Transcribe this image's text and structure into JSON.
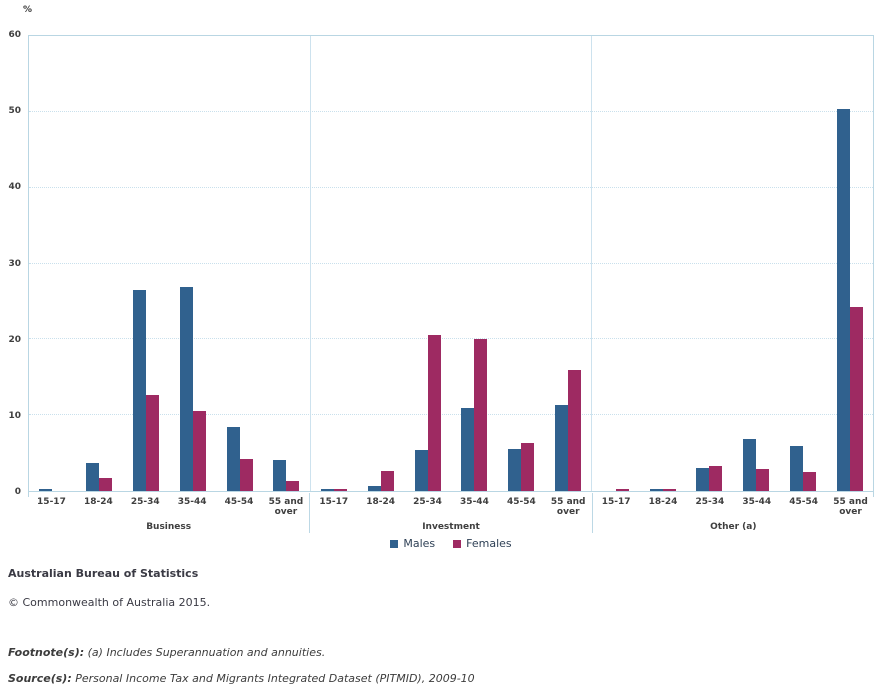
{
  "chart_data": {
    "type": "bar",
    "title": "",
    "ylabel": "%",
    "ylim": [
      0,
      60
    ],
    "yticks": [
      0,
      10,
      20,
      30,
      40,
      50,
      60
    ],
    "grid": "horizontal-dotted",
    "legend_position": "bottom-center",
    "categories": [
      "15-17",
      "18-24",
      "25-34",
      "35-44",
      "45-54",
      "55 and over"
    ],
    "groups": [
      {
        "label": "Business",
        "series": [
          {
            "name": "Males",
            "values": [
              0.2,
              3.7,
              26.5,
              26.9,
              8.4,
              4.1
            ]
          },
          {
            "name": "Females",
            "values": [
              0,
              1.7,
              12.7,
              10.6,
              4.2,
              1.3
            ]
          }
        ]
      },
      {
        "label": "Investment",
        "series": [
          {
            "name": "Males",
            "values": [
              0.2,
              0.6,
              5.4,
              11.0,
              5.6,
              11.4
            ]
          },
          {
            "name": "Females",
            "values": [
              0.2,
              2.7,
              20.6,
              20.0,
              6.3,
              15.9
            ]
          }
        ]
      },
      {
        "label": "Other (a)",
        "series": [
          {
            "name": "Males",
            "values": [
              0,
              0.3,
              3.1,
              6.8,
              5.9,
              50.4
            ]
          },
          {
            "name": "Females",
            "values": [
              0.2,
              0.2,
              3.3,
              2.9,
              2.5,
              24.3
            ]
          }
        ]
      }
    ],
    "legend": [
      {
        "label": "Males",
        "color": "#30618E"
      },
      {
        "label": "Females",
        "color": "#9E2A62"
      }
    ]
  },
  "footer": {
    "abs": "Australian Bureau of Statistics",
    "copyright": "© Commonwealth of Australia 2015.",
    "footnote_label": "Footnote(s):",
    "footnote_text": " (a) Includes Superannuation and annuities.",
    "source_label": "Source(s):",
    "source_text": " Personal Income Tax and Migrants Integrated Dataset (PITMID), 2009-10"
  }
}
